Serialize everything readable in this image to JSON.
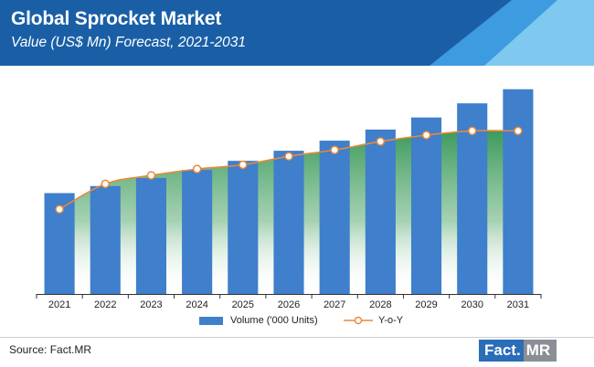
{
  "header": {
    "title": "Global Sprocket Market",
    "subtitle": "Value (US$ Mn) Forecast, 2021-2031"
  },
  "colors": {
    "header_dark": "#1a5fa6",
    "header_light_1": "#3d9be0",
    "header_light_2": "#7fc8ef",
    "bar": "#3f7fcb",
    "line": "#e8893a",
    "area": "#3c9a5c"
  },
  "chart_data": {
    "type": "bar",
    "categories": [
      "2021",
      "2022",
      "2023",
      "2024",
      "2025",
      "2026",
      "2027",
      "2028",
      "2029",
      "2030",
      "2031"
    ],
    "series": [
      {
        "name": "Volume ('000 Units)",
        "type": "bar",
        "values": [
          100,
          107,
          115,
          123,
          132,
          142,
          152,
          163,
          175,
          189,
          203
        ]
      },
      {
        "name": "Y-o-Y",
        "type": "line",
        "values": [
          4.0,
          5.2,
          5.6,
          5.9,
          6.1,
          6.5,
          6.8,
          7.2,
          7.5,
          7.7,
          7.7
        ]
      }
    ],
    "title": "Global Sprocket Market",
    "subtitle": "Value (US$ Mn) Forecast, 2021-2031",
    "xlabel": "",
    "ylabel": "",
    "ylim": [
      0,
      210
    ],
    "y2lim": [
      0,
      10
    ],
    "grid": false,
    "legend": "bottom"
  },
  "footer": {
    "source": "Source: Fact.MR",
    "logo_left": "Fact.",
    "logo_right": "MR"
  }
}
